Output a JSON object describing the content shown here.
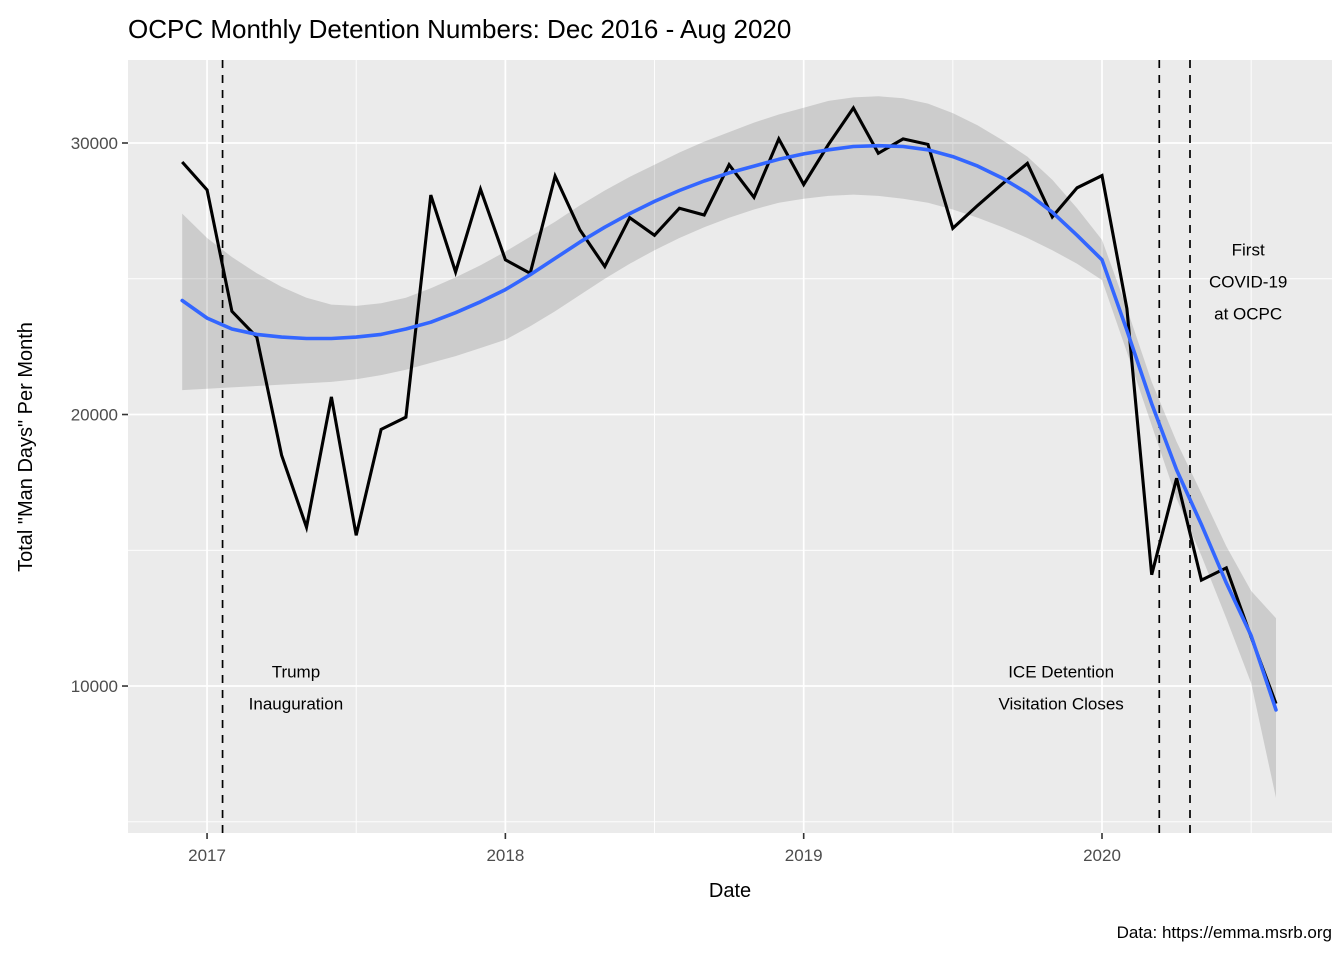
{
  "chart_data": {
    "type": "line",
    "title": "OCPC Monthly Detention Numbers: Dec 2016 - Aug 2020",
    "xlabel": "Date",
    "ylabel": "Total \"Man Days\" Per Month",
    "caption": "Data: https://emma.msrb.org",
    "xlim": [
      2016.735,
      2020.771
    ],
    "ylim": [
      4587,
      33057
    ],
    "grid": true,
    "legend_position": "none",
    "x_ticks": [
      {
        "value": 2017,
        "label": "2017"
      },
      {
        "value": 2018,
        "label": "2018"
      },
      {
        "value": 2019,
        "label": "2019"
      },
      {
        "value": 2020,
        "label": "2020"
      }
    ],
    "x_minor": [
      2017.5,
      2018.5,
      2019.5,
      2020.5
    ],
    "y_ticks": [
      {
        "value": 10000,
        "label": "10000"
      },
      {
        "value": 20000,
        "label": "20000"
      },
      {
        "value": 30000,
        "label": "30000"
      }
    ],
    "y_minor": [
      5000,
      15000,
      25000
    ],
    "months": [
      "2016-12",
      "2017-01",
      "2017-02",
      "2017-03",
      "2017-04",
      "2017-05",
      "2017-06",
      "2017-07",
      "2017-08",
      "2017-09",
      "2017-10",
      "2017-11",
      "2017-12",
      "2018-01",
      "2018-02",
      "2018-03",
      "2018-04",
      "2018-05",
      "2018-06",
      "2018-07",
      "2018-08",
      "2018-09",
      "2018-10",
      "2018-11",
      "2018-12",
      "2019-01",
      "2019-02",
      "2019-03",
      "2019-04",
      "2019-05",
      "2019-06",
      "2019-07",
      "2019-08",
      "2019-09",
      "2019-10",
      "2019-11",
      "2019-12",
      "2020-01",
      "2020-02",
      "2020-03",
      "2020-04",
      "2020-05",
      "2020-06",
      "2020-07",
      "2020-08"
    ],
    "series": [
      {
        "name": "monthly-man-days",
        "color": "#000000",
        "values": [
          29300,
          28270,
          23800,
          22850,
          18500,
          15850,
          20650,
          15550,
          19450,
          19900,
          28080,
          25250,
          28300,
          25700,
          25200,
          28780,
          26800,
          25450,
          27250,
          26600,
          27600,
          27350,
          29200,
          28000,
          30150,
          28470,
          29950,
          31290,
          29620,
          30150,
          29950,
          26860,
          27700,
          28500,
          29250,
          27280,
          28350,
          28800,
          23900,
          14100,
          17650,
          13900,
          14350,
          11800,
          9350
        ]
      },
      {
        "name": "loess-smooth",
        "color": "#3366FF",
        "values": [
          24200,
          23550,
          23150,
          22950,
          22850,
          22800,
          22800,
          22850,
          22950,
          23150,
          23400,
          23750,
          24150,
          24600,
          25150,
          25750,
          26350,
          26900,
          27400,
          27850,
          28250,
          28600,
          28900,
          29150,
          29400,
          29600,
          29750,
          29870,
          29900,
          29870,
          29750,
          29500,
          29150,
          28700,
          28150,
          27450,
          26600,
          25700,
          23100,
          20400,
          17960,
          15950,
          13800,
          11850,
          9120
        ]
      }
    ],
    "ribbon": {
      "upper": [
        27400,
        26500,
        25800,
        25200,
        24700,
        24300,
        24050,
        24000,
        24100,
        24300,
        24650,
        25050,
        25500,
        26000,
        26550,
        27100,
        27700,
        28250,
        28750,
        29200,
        29650,
        30050,
        30400,
        30750,
        31050,
        31300,
        31550,
        31680,
        31720,
        31650,
        31450,
        31100,
        30650,
        30100,
        29500,
        28650,
        27600,
        26430,
        23900,
        21200,
        19000,
        17100,
        15150,
        13500,
        12500
      ],
      "lower": [
        20900,
        20950,
        21000,
        21050,
        21100,
        21150,
        21200,
        21300,
        21450,
        21650,
        21900,
        22150,
        22450,
        22750,
        23250,
        23800,
        24400,
        25000,
        25550,
        26050,
        26500,
        26900,
        27250,
        27550,
        27800,
        27950,
        28050,
        28100,
        28050,
        27950,
        27800,
        27550,
        27250,
        26900,
        26500,
        26050,
        25550,
        24950,
        22300,
        19600,
        16900,
        14800,
        12500,
        10100,
        5880
      ]
    },
    "vlines": [
      {
        "x": 2017.052
      },
      {
        "x": 2020.192
      },
      {
        "x": 2020.295
      }
    ],
    "annotations": [
      {
        "x": 2017.298,
        "y": 9950,
        "lines": [
          "Trump",
          "Inauguration"
        ]
      },
      {
        "x": 2019.863,
        "y": 9950,
        "lines": [
          "ICE Detention",
          "Visitation Closes"
        ]
      },
      {
        "x": 2020.49,
        "y": 24890,
        "lines": [
          "First",
          "COVID-19",
          "at OCPC"
        ]
      }
    ],
    "colors": {
      "panel_background": "#EBEBEB",
      "grid": "#FFFFFF",
      "data_line": "#000000",
      "smooth_line": "#3366FF",
      "ribbon_fill": "rgba(60,60,60,0.175)",
      "vline": "#000000",
      "tick_label": "#4D4D4D",
      "tick_mark": "#333333"
    }
  }
}
